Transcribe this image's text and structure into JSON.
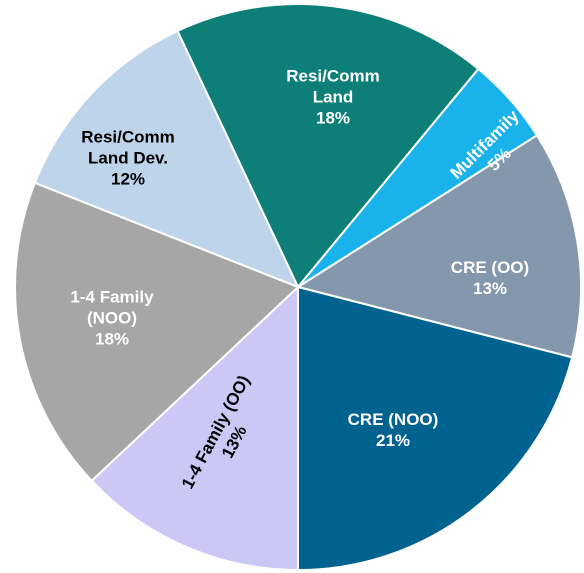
{
  "chart_data": {
    "type": "pie",
    "categories": [
      "Resi/Comm Land",
      "Multifamily",
      "CRE (OO)",
      "CRE (NOO)",
      "1-4 Family (OO)",
      "1-4 Family (NOO)",
      "Resi/Comm Land Dev."
    ],
    "values": [
      18,
      5,
      13,
      21,
      13,
      18,
      12
    ],
    "value_labels": [
      "18%",
      "5%",
      "13%",
      "21%",
      "13%",
      "18%",
      "12%"
    ],
    "colors": [
      "#0e7f78",
      "#1ab2ea",
      "#8497ad",
      "#00628f",
      "#cbc8f5",
      "#a6a6a6",
      "#bdd4eb"
    ],
    "label_colors": [
      "#ffffff",
      "#ffffff",
      "#ffffff",
      "#ffffff",
      "#000000",
      "#ffffff",
      "#000000"
    ]
  }
}
